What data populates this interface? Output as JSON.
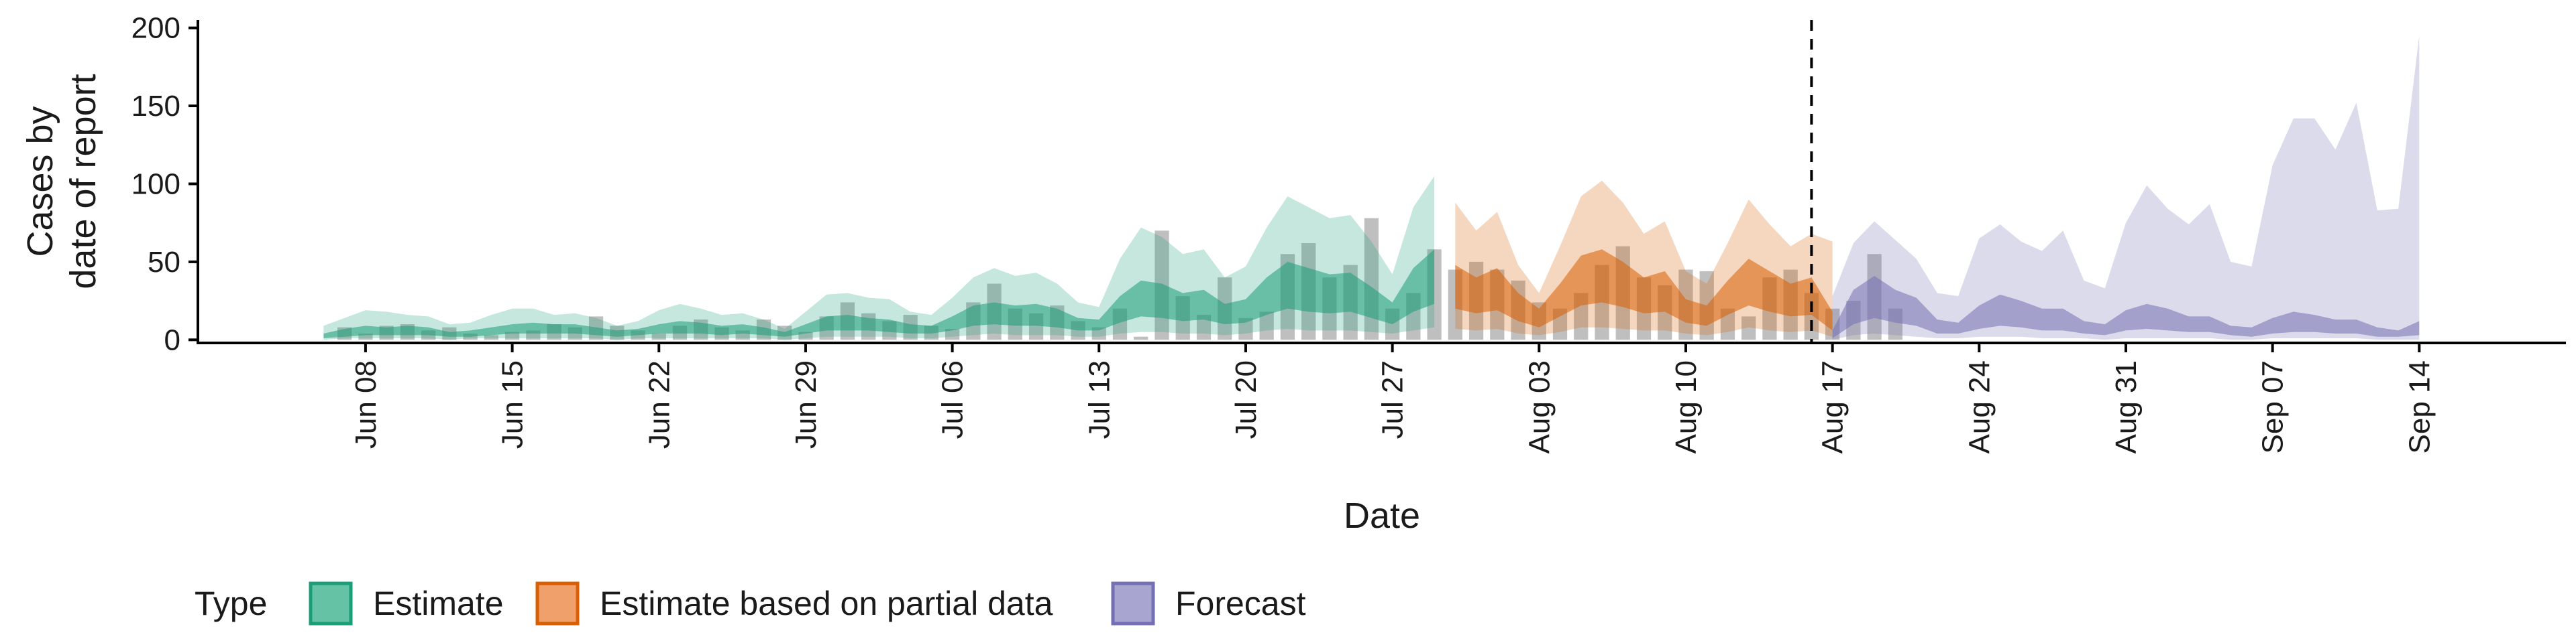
{
  "chart_data": {
    "type": "area",
    "xlabel": "Date",
    "ylabel_lines": [
      "Cases by",
      "date of report"
    ],
    "ylim": [
      -2,
      205
    ],
    "y_ticks": [
      0,
      50,
      100,
      150,
      200
    ],
    "x_ticks": [
      {
        "date": "2020-06-08",
        "label": "Jun 08"
      },
      {
        "date": "2020-06-15",
        "label": "Jun 15"
      },
      {
        "date": "2020-06-22",
        "label": "Jun 22"
      },
      {
        "date": "2020-06-29",
        "label": "Jun 29"
      },
      {
        "date": "2020-07-06",
        "label": "Jul 06"
      },
      {
        "date": "2020-07-13",
        "label": "Jul 13"
      },
      {
        "date": "2020-07-20",
        "label": "Jul 20"
      },
      {
        "date": "2020-07-27",
        "label": "Jul 27"
      },
      {
        "date": "2020-08-03",
        "label": "Aug 03"
      },
      {
        "date": "2020-08-10",
        "label": "Aug 10"
      },
      {
        "date": "2020-08-17",
        "label": "Aug 17"
      },
      {
        "date": "2020-08-24",
        "label": "Aug 24"
      },
      {
        "date": "2020-08-31",
        "label": "Aug 31"
      },
      {
        "date": "2020-09-07",
        "label": "Sep 07"
      },
      {
        "date": "2020-09-14",
        "label": "Sep 14"
      }
    ],
    "xlim": [
      "2020-05-31",
      "2020-09-21"
    ],
    "forecast_line_date": "2020-08-16",
    "legend": {
      "title": "Type",
      "placement": "bottom-left",
      "items": [
        {
          "label": "Estimate",
          "fill": "#66c2a5",
          "stroke": "#1b9e77"
        },
        {
          "label": "Estimate based on partial data",
          "fill": "#f0a06a",
          "stroke": "#d95f02"
        },
        {
          "label": "Forecast",
          "fill": "#a9a5d1",
          "stroke": "#7570b3"
        }
      ]
    },
    "colors": {
      "estimate": "#1b9e77",
      "partial": "#d95f02",
      "forecast": "#7570b3",
      "bars": "#7f7f7f"
    },
    "reported_cases": {
      "start": "2020-06-07",
      "values": [
        8,
        4,
        9,
        10,
        6,
        8,
        4,
        3,
        5,
        6,
        10,
        8,
        15,
        9,
        6,
        4,
        9,
        13,
        8,
        6,
        13,
        9,
        5,
        15,
        24,
        17,
        12,
        16,
        9,
        7,
        24,
        36,
        20,
        17,
        22,
        12,
        8,
        20,
        2,
        70,
        28,
        16,
        40,
        14,
        18,
        55,
        62,
        40,
        48,
        78,
        20,
        30,
        58,
        45,
        50,
        45,
        38,
        24,
        20,
        30,
        48,
        60,
        40,
        35,
        45,
        44,
        20,
        15,
        40,
        45,
        30,
        20,
        25,
        55,
        20
      ]
    },
    "series": [
      {
        "name": "Estimate",
        "start": "2020-06-06",
        "outer_upper": [
          9,
          14,
          19,
          18,
          16,
          15,
          10,
          11,
          16,
          20,
          20,
          16,
          17,
          14,
          9,
          12,
          19,
          23,
          20,
          16,
          17,
          13,
          7,
          18,
          29,
          30,
          27,
          26,
          18,
          16,
          27,
          40,
          46,
          41,
          43,
          36,
          24,
          21,
          52,
          72,
          66,
          55,
          58,
          40,
          47,
          72,
          92,
          85,
          78,
          80,
          63,
          42,
          85,
          105
        ],
        "inner_upper": [
          4,
          7,
          9,
          8,
          9,
          8,
          5,
          6,
          8,
          10,
          11,
          10,
          10,
          8,
          6,
          7,
          10,
          12,
          11,
          9,
          10,
          8,
          5,
          10,
          15,
          16,
          14,
          13,
          10,
          9,
          15,
          22,
          24,
          22,
          23,
          20,
          14,
          13,
          28,
          38,
          36,
          30,
          32,
          23,
          26,
          40,
          50,
          46,
          42,
          43,
          34,
          24,
          46,
          58
        ],
        "inner_lower": [
          1,
          2,
          3,
          3,
          3,
          3,
          2,
          2,
          3,
          4,
          4,
          4,
          4,
          3,
          2,
          3,
          4,
          4,
          4,
          3,
          4,
          3,
          2,
          4,
          6,
          6,
          6,
          5,
          4,
          4,
          6,
          9,
          10,
          9,
          9,
          8,
          6,
          6,
          11,
          15,
          14,
          12,
          13,
          10,
          11,
          16,
          20,
          18,
          17,
          18,
          14,
          10,
          18,
          23
        ],
        "outer_lower": [
          0,
          1,
          1,
          1,
          1,
          1,
          0,
          1,
          1,
          1,
          1,
          1,
          1,
          1,
          0,
          1,
          1,
          1,
          1,
          1,
          1,
          1,
          0,
          1,
          2,
          2,
          2,
          2,
          1,
          1,
          2,
          3,
          4,
          3,
          3,
          3,
          2,
          2,
          4,
          5,
          5,
          4,
          4,
          3,
          4,
          6,
          7,
          6,
          6,
          6,
          5,
          4,
          6,
          8
        ]
      },
      {
        "name": "Estimate based on partial data",
        "start": "2020-07-30",
        "outer_upper": [
          88,
          70,
          82,
          48,
          30,
          60,
          92,
          102,
          88,
          68,
          76,
          44,
          36,
          62,
          90,
          74,
          60,
          68,
          63
        ],
        "inner_upper": [
          48,
          40,
          46,
          30,
          20,
          36,
          54,
          58,
          50,
          40,
          44,
          26,
          22,
          38,
          52,
          44,
          36,
          40,
          18
        ],
        "inner_lower": [
          20,
          17,
          19,
          12,
          8,
          15,
          22,
          24,
          21,
          17,
          18,
          11,
          9,
          16,
          22,
          18,
          15,
          16,
          6
        ],
        "outer_lower": [
          7,
          6,
          7,
          4,
          3,
          5,
          8,
          8,
          7,
          6,
          6,
          4,
          3,
          5,
          8,
          6,
          5,
          6,
          2
        ]
      },
      {
        "name": "Forecast",
        "start": "2020-08-17",
        "outer_upper": [
          28,
          62,
          76,
          64,
          52,
          30,
          28,
          65,
          74,
          63,
          57,
          70,
          38,
          33,
          75,
          99,
          84,
          74,
          87,
          50,
          47,
          112,
          142,
          142,
          122,
          152,
          83,
          84,
          195
        ],
        "inner_upper": [
          6,
          32,
          41,
          32,
          27,
          13,
          11,
          22,
          29,
          25,
          20,
          20,
          12,
          10,
          19,
          23,
          20,
          15,
          15,
          9,
          8,
          14,
          18,
          16,
          13,
          13,
          8,
          6,
          12
        ],
        "inner_lower": [
          1,
          10,
          14,
          11,
          9,
          4,
          4,
          7,
          9,
          8,
          6,
          6,
          4,
          3,
          6,
          7,
          6,
          5,
          5,
          3,
          2,
          4,
          5,
          5,
          4,
          4,
          2,
          2,
          3
        ],
        "outer_lower": [
          0,
          3,
          4,
          3,
          2,
          1,
          1,
          2,
          2,
          2,
          1,
          1,
          1,
          0,
          1,
          1,
          1,
          1,
          1,
          0,
          0,
          1,
          1,
          1,
          1,
          1,
          0,
          0,
          0
        ]
      }
    ]
  }
}
